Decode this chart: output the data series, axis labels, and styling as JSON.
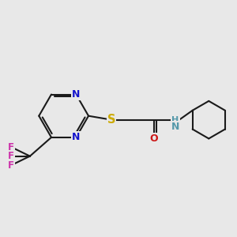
{
  "background_color": "#e8e8e8",
  "bond_color": "#1a1a1a",
  "bond_width": 1.5,
  "atom_colors": {
    "N": "#1515cc",
    "S": "#ccaa00",
    "O": "#cc1515",
    "F": "#cc33aa",
    "NH": "#5599aa",
    "C": "#1a1a1a"
  },
  "font_size": 8.5
}
